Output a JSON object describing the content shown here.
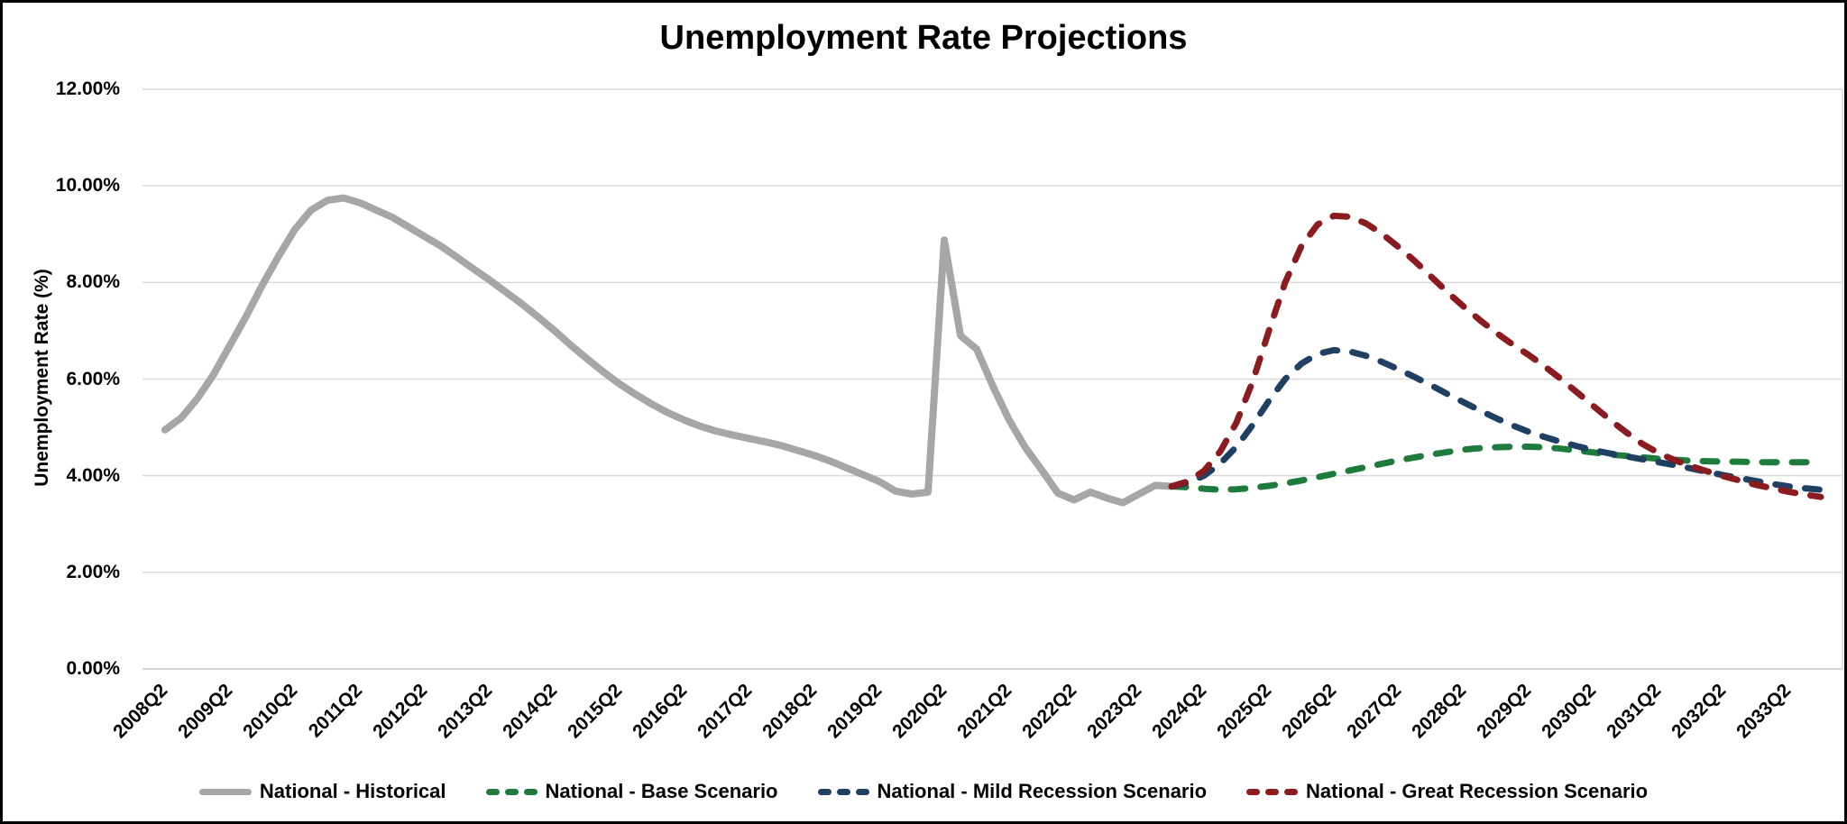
{
  "chart_data": {
    "type": "line",
    "title": "Unemployment Rate Projections",
    "xlabel": "",
    "ylabel": "Unemployment Rate (%)",
    "ylim": [
      0,
      12
    ],
    "grid": "horizontal",
    "legend_position": "bottom",
    "x_unit": "quarter",
    "x_start": "2008Q2",
    "x_end": "2033Q4",
    "y_ticks": [
      {
        "label": "0.00%",
        "value": 0
      },
      {
        "label": "2.00%",
        "value": 2
      },
      {
        "label": "4.00%",
        "value": 4
      },
      {
        "label": "6.00%",
        "value": 6
      },
      {
        "label": "8.00%",
        "value": 8
      },
      {
        "label": "10.00%",
        "value": 10
      },
      {
        "label": "12.00%",
        "value": 12
      }
    ],
    "x_tick_labels": [
      "2008Q2",
      "2009Q2",
      "2010Q2",
      "2011Q2",
      "2012Q2",
      "2013Q2",
      "2014Q2",
      "2015Q2",
      "2016Q2",
      "2017Q2",
      "2018Q2",
      "2019Q2",
      "2020Q2",
      "2021Q2",
      "2022Q2",
      "2023Q2",
      "2024Q2",
      "2025Q2",
      "2026Q2",
      "2027Q2",
      "2028Q2",
      "2029Q2",
      "2030Q2",
      "2031Q2",
      "2032Q2",
      "2033Q2"
    ],
    "series": [
      {
        "name": "National - Historical",
        "color": "#A6A6A6",
        "line_style": "solid",
        "start_quarter": "2008Q2",
        "start_index": 0,
        "values": [
          4.95,
          5.2,
          5.6,
          6.1,
          6.7,
          7.3,
          7.95,
          8.55,
          9.1,
          9.5,
          9.7,
          9.75,
          9.65,
          9.5,
          9.35,
          9.15,
          8.95,
          8.75,
          8.52,
          8.28,
          8.05,
          7.8,
          7.55,
          7.28,
          7.0,
          6.7,
          6.42,
          6.15,
          5.9,
          5.68,
          5.48,
          5.3,
          5.15,
          5.02,
          4.92,
          4.84,
          4.77,
          4.7,
          4.62,
          4.52,
          4.42,
          4.3,
          4.16,
          4.02,
          3.88,
          3.68,
          3.62,
          3.66,
          8.88,
          6.9,
          6.62,
          5.85,
          5.15,
          4.58,
          4.12,
          3.64,
          3.5,
          3.66,
          3.54,
          3.44,
          3.62,
          3.8,
          3.78
        ]
      },
      {
        "name": "National - Base Scenario",
        "color": "#1E7B3C",
        "line_style": "dashed",
        "start_quarter": "2023Q4",
        "start_index": 62,
        "values": [
          3.78,
          3.76,
          3.73,
          3.71,
          3.72,
          3.75,
          3.79,
          3.84,
          3.9,
          3.97,
          4.04,
          4.11,
          4.18,
          4.25,
          4.32,
          4.38,
          4.44,
          4.49,
          4.54,
          4.57,
          4.59,
          4.6,
          4.6,
          4.59,
          4.56,
          4.52,
          4.48,
          4.44,
          4.41,
          4.38,
          4.35,
          4.33,
          4.31,
          4.3,
          4.29,
          4.29,
          4.28,
          4.28,
          4.28,
          4.28,
          4.28
        ]
      },
      {
        "name": "National - Mild Recession Scenario",
        "color": "#1F3F63",
        "line_style": "dashed",
        "start_quarter": "2023Q4",
        "start_index": 62,
        "values": [
          3.78,
          3.85,
          4.0,
          4.25,
          4.6,
          5.05,
          5.55,
          6.0,
          6.32,
          6.52,
          6.6,
          6.57,
          6.48,
          6.35,
          6.2,
          6.04,
          5.87,
          5.69,
          5.52,
          5.35,
          5.19,
          5.04,
          4.91,
          4.8,
          4.7,
          4.61,
          4.53,
          4.46,
          4.4,
          4.34,
          4.28,
          4.22,
          4.15,
          4.08,
          4.01,
          3.95,
          3.89,
          3.83,
          3.78,
          3.74,
          3.71
        ]
      },
      {
        "name": "National - Great Recession Scenario",
        "color": "#8B1B1E",
        "line_style": "dashed",
        "start_quarter": "2023Q4",
        "start_index": 62,
        "values": [
          3.78,
          3.88,
          4.1,
          4.5,
          5.1,
          5.95,
          7.0,
          8.0,
          8.75,
          9.2,
          9.38,
          9.36,
          9.22,
          9.0,
          8.73,
          8.44,
          8.12,
          7.8,
          7.5,
          7.22,
          6.96,
          6.72,
          6.5,
          6.26,
          6.0,
          5.72,
          5.44,
          5.16,
          4.9,
          4.66,
          4.47,
          4.32,
          4.2,
          4.09,
          3.99,
          3.9,
          3.81,
          3.74,
          3.67,
          3.61,
          3.56
        ]
      }
    ],
    "colors": {
      "gridline": "#D9D9D9",
      "axis_line": "#C9C9C9",
      "plot_right_border": "#D9D9D9",
      "text": "#000000",
      "background": "#FFFFFF",
      "frame_border": "#000000"
    }
  }
}
